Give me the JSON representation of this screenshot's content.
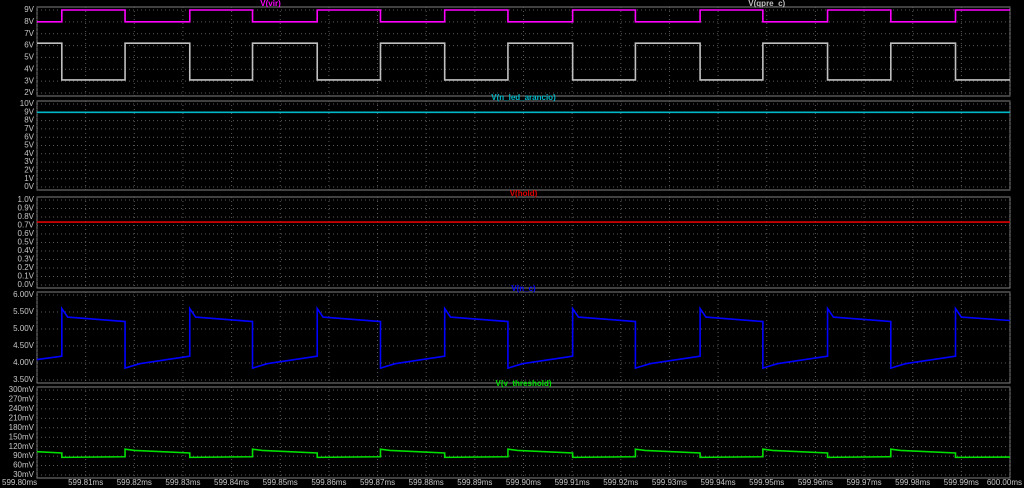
{
  "chart_data": [
    {
      "type": "line",
      "x": [
        599.8,
        599.8051,
        599.8051,
        599.8181,
        599.8181,
        599.8314,
        599.8314,
        599.8443,
        599.8443,
        599.8576,
        599.8576,
        599.8706,
        599.8706,
        599.8838,
        599.8838,
        599.8968,
        599.8968,
        599.9101,
        599.9101,
        599.923,
        599.923,
        599.9363,
        599.9363,
        599.9492,
        599.9492,
        599.9625,
        599.9625,
        599.9755,
        599.9755,
        599.9888,
        599.9888,
        600.0
      ],
      "series": [
        {
          "name": "V(vir)",
          "color": "#ff00ff",
          "values": [
            8,
            8,
            9,
            9,
            8,
            8,
            9,
            9,
            8,
            8,
            9,
            9,
            8,
            8,
            9,
            9,
            8,
            8,
            9,
            9,
            8,
            8,
            9,
            9,
            8,
            8,
            9,
            9,
            8,
            8,
            9,
            9
          ]
        },
        {
          "name": "V(qpre_c)",
          "color": "#c0c0c0",
          "values": [
            6.2,
            6.2,
            3.1,
            3.1,
            6.2,
            6.2,
            3.1,
            3.1,
            6.2,
            6.2,
            3.1,
            3.1,
            6.2,
            6.2,
            3.1,
            3.1,
            6.2,
            6.2,
            3.1,
            3.1,
            6.2,
            6.2,
            3.1,
            3.1,
            6.2,
            6.2,
            3.1,
            3.1,
            6.2,
            6.2,
            3.1,
            3.1
          ]
        }
      ],
      "ylim": [
        2,
        9
      ],
      "yticks": [
        {
          "value": 9,
          "label": "9V"
        },
        {
          "value": 8,
          "label": "8V"
        },
        {
          "value": 7,
          "label": "7V"
        },
        {
          "value": 6,
          "label": "6V"
        },
        {
          "value": 5,
          "label": "5V"
        },
        {
          "value": 4,
          "label": "4V"
        },
        {
          "value": 3,
          "label": "3V"
        },
        {
          "value": 2,
          "label": "2V"
        }
      ]
    },
    {
      "type": "line",
      "x": [
        599.8,
        600.0
      ],
      "series": [
        {
          "name": "V(n_led_arancio)",
          "color": "#00b8c8",
          "values": [
            9.0,
            9.0
          ]
        }
      ],
      "ylim": [
        0,
        10
      ],
      "yticks": [
        {
          "value": 10,
          "label": "10V"
        },
        {
          "value": 9,
          "label": "9V"
        },
        {
          "value": 8,
          "label": "8V"
        },
        {
          "value": 7,
          "label": "7V"
        },
        {
          "value": 6,
          "label": "6V"
        },
        {
          "value": 5,
          "label": "5V"
        },
        {
          "value": 4,
          "label": "4V"
        },
        {
          "value": 3,
          "label": "3V"
        },
        {
          "value": 2,
          "label": "2V"
        },
        {
          "value": 1,
          "label": "1V"
        },
        {
          "value": 0,
          "label": "0V"
        }
      ]
    },
    {
      "type": "line",
      "x": [
        599.8,
        600.0
      ],
      "series": [
        {
          "name": "V(hold)",
          "color": "#e00000",
          "values": [
            0.74,
            0.74
          ]
        }
      ],
      "ylim": [
        0,
        1
      ],
      "yticks": [
        {
          "value": 1,
          "label": "1.0V"
        },
        {
          "value": 0.9,
          "label": "0.9V"
        },
        {
          "value": 0.8,
          "label": "0.8V"
        },
        {
          "value": 0.7,
          "label": "0.7V"
        },
        {
          "value": 0.6,
          "label": "0.6V"
        },
        {
          "value": 0.5,
          "label": "0.5V"
        },
        {
          "value": 0.4,
          "label": "0.4V"
        },
        {
          "value": 0.3,
          "label": "0.3V"
        },
        {
          "value": 0.2,
          "label": "0.2V"
        },
        {
          "value": 0.1,
          "label": "0.1V"
        },
        {
          "value": 0,
          "label": "0.0V"
        }
      ]
    },
    {
      "type": "line",
      "x": [
        599.8,
        599.8051,
        599.8051,
        599.8063,
        599.8181,
        599.8181,
        599.8211,
        599.8314,
        599.8314,
        599.8326,
        599.8443,
        599.8443,
        599.8473,
        599.8576,
        599.8576,
        599.8588,
        599.8706,
        599.8706,
        599.8736,
        599.8838,
        599.8838,
        599.885,
        599.8968,
        599.8968,
        599.8998,
        599.9101,
        599.9101,
        599.9113,
        599.923,
        599.923,
        599.926,
        599.9363,
        599.9363,
        599.9375,
        599.9492,
        599.9492,
        599.9522,
        599.9625,
        599.9625,
        599.9637,
        599.9755,
        599.9755,
        599.9785,
        599.9888,
        599.9888,
        599.99,
        600.0
      ],
      "series": [
        {
          "name": "V(n_c)",
          "color": "#0000ff",
          "values": [
            4.1,
            4.2,
            5.6,
            5.35,
            5.22,
            3.85,
            3.98,
            4.2,
            5.6,
            5.35,
            5.22,
            3.85,
            3.98,
            4.2,
            5.6,
            5.35,
            5.22,
            3.85,
            3.98,
            4.2,
            5.6,
            5.35,
            5.22,
            3.85,
            3.98,
            4.2,
            5.6,
            5.35,
            5.22,
            3.85,
            3.98,
            4.2,
            5.6,
            5.35,
            5.22,
            3.85,
            3.98,
            4.2,
            5.6,
            5.35,
            5.22,
            3.85,
            3.98,
            4.2,
            5.6,
            5.35,
            5.25
          ]
        }
      ],
      "ylim": [
        3.5,
        6
      ],
      "yticks": [
        {
          "value": 6,
          "label": "6.00V"
        },
        {
          "value": 5.5,
          "label": "5.50V"
        },
        {
          "value": 5,
          "label": "5.00V"
        },
        {
          "value": 4.5,
          "label": "4.50V"
        },
        {
          "value": 4,
          "label": "4.00V"
        },
        {
          "value": 3.5,
          "label": "3.50V"
        }
      ]
    },
    {
      "type": "line",
      "x": [
        599.8,
        599.8051,
        599.8051,
        599.8181,
        599.8181,
        599.8201,
        599.8314,
        599.8314,
        599.8443,
        599.8443,
        599.8463,
        599.8576,
        599.8576,
        599.8706,
        599.8706,
        599.8726,
        599.8838,
        599.8838,
        599.8968,
        599.8968,
        599.8988,
        599.9101,
        599.9101,
        599.923,
        599.923,
        599.925,
        599.9363,
        599.9363,
        599.9492,
        599.9492,
        599.9512,
        599.9625,
        599.9625,
        599.9755,
        599.9755,
        599.9775,
        599.9888,
        599.9888,
        600.0
      ],
      "series": [
        {
          "name": "V(v_threshold)",
          "color": "#00e000",
          "values": [
            104,
            100,
            86,
            88,
            112,
            108,
            100,
            86,
            88,
            112,
            108,
            100,
            86,
            88,
            112,
            108,
            100,
            86,
            88,
            112,
            108,
            100,
            86,
            88,
            112,
            108,
            100,
            86,
            88,
            112,
            108,
            100,
            86,
            88,
            112,
            108,
            100,
            86,
            87
          ]
        }
      ],
      "ylim": [
        30,
        300
      ],
      "yticks": [
        {
          "value": 300,
          "label": "300mV"
        },
        {
          "value": 270,
          "label": "270mV"
        },
        {
          "value": 240,
          "label": "240mV"
        },
        {
          "value": 210,
          "label": "210mV"
        },
        {
          "value": 180,
          "label": "180mV"
        },
        {
          "value": 150,
          "label": "150mV"
        },
        {
          "value": 120,
          "label": "120mV"
        },
        {
          "value": 90,
          "label": "90mV"
        },
        {
          "value": 60,
          "label": "60mV"
        },
        {
          "value": 30,
          "label": "30mV"
        }
      ],
      "xlim": [
        599.8,
        600.0
      ],
      "xticks": [
        {
          "value": 599.8,
          "label": "599.80ms"
        },
        {
          "value": 599.81,
          "label": "599.81ms"
        },
        {
          "value": 599.82,
          "label": "599.82ms"
        },
        {
          "value": 599.83,
          "label": "599.83ms"
        },
        {
          "value": 599.84,
          "label": "599.84ms"
        },
        {
          "value": 599.85,
          "label": "599.85ms"
        },
        {
          "value": 599.86,
          "label": "599.86ms"
        },
        {
          "value": 599.87,
          "label": "599.87ms"
        },
        {
          "value": 599.88,
          "label": "599.88ms"
        },
        {
          "value": 599.89,
          "label": "599.89ms"
        },
        {
          "value": 599.9,
          "label": "599.90ms"
        },
        {
          "value": 599.91,
          "label": "599.91ms"
        },
        {
          "value": 599.92,
          "label": "599.92ms"
        },
        {
          "value": 599.93,
          "label": "599.93ms"
        },
        {
          "value": 599.94,
          "label": "599.94ms"
        },
        {
          "value": 599.95,
          "label": "599.95ms"
        },
        {
          "value": 599.96,
          "label": "599.96ms"
        },
        {
          "value": 599.97,
          "label": "599.97ms"
        },
        {
          "value": 599.98,
          "label": "599.98ms"
        },
        {
          "value": 599.99,
          "label": "599.99ms"
        },
        {
          "value": 600.0,
          "label": "600.00ms"
        }
      ]
    }
  ]
}
